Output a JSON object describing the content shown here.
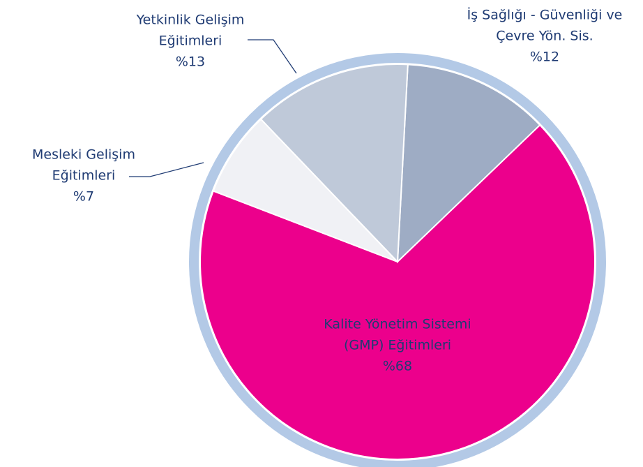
{
  "chart_data": {
    "type": "pie",
    "categories": [
      [
        "İş Sağlığı - Güvenliği ve",
        "Çevre Yön. Sis."
      ],
      [
        "Kalite Yönetim Sistemi",
        "(GMP) Eğitimleri"
      ],
      [
        "Mesleki Gelişim",
        "Eğitimleri"
      ],
      [
        "Yetkinlik Gelişim",
        "Eğitimleri"
      ]
    ],
    "values": [
      12,
      68,
      7,
      13
    ],
    "value_labels": [
      "%12",
      "%68",
      "%7",
      "%13"
    ],
    "colors": [
      "#9eacc4",
      "#ec008c",
      "#f0f1f5",
      "#bfc9d9"
    ]
  }
}
